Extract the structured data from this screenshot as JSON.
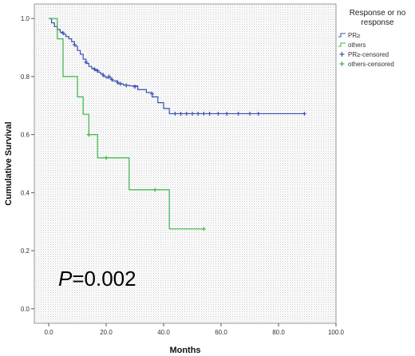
{
  "chart_data": {
    "type": "line",
    "title": "",
    "xlabel": "Months",
    "ylabel": "Cumulative Survival",
    "xlim": [
      -5,
      100
    ],
    "ylim": [
      -0.05,
      1.05
    ],
    "x_ticks": [
      "0.0",
      "20.0",
      "40.0",
      "60.0",
      "80.0",
      "100.0"
    ],
    "y_ticks": [
      "0.0",
      "0.2",
      "0.4",
      "0.6",
      "0.8",
      "1.0"
    ],
    "grid": false,
    "background": "dotted-gray",
    "legend": {
      "title": "Response or no response",
      "title_lines": [
        "Response or no",
        "response"
      ],
      "placement": "right",
      "entries": [
        "PR≥",
        "others",
        "PR≥-censored",
        "others-censored"
      ]
    },
    "annotation": {
      "p_symbol": "P",
      "p_value": "=0.002"
    },
    "series": [
      {
        "name": "PR≥",
        "color": "#3b53b0",
        "step": [
          [
            0,
            1.0
          ],
          [
            1,
            0.985
          ],
          [
            2,
            0.972
          ],
          [
            3,
            0.962
          ],
          [
            4,
            0.953
          ],
          [
            5,
            0.945
          ],
          [
            6,
            0.938
          ],
          [
            7,
            0.93
          ],
          [
            8,
            0.92
          ],
          [
            9,
            0.905
          ],
          [
            10,
            0.89
          ],
          [
            11,
            0.877
          ],
          [
            12,
            0.86
          ],
          [
            13,
            0.845
          ],
          [
            14,
            0.835
          ],
          [
            15,
            0.828
          ],
          [
            16,
            0.822
          ],
          [
            17,
            0.815
          ],
          [
            18,
            0.81
          ],
          [
            19,
            0.8
          ],
          [
            20,
            0.795
          ],
          [
            22,
            0.785
          ],
          [
            24,
            0.775
          ],
          [
            26,
            0.77
          ],
          [
            28,
            0.768
          ],
          [
            31,
            0.755
          ],
          [
            34,
            0.745
          ],
          [
            36,
            0.73
          ],
          [
            38,
            0.71
          ],
          [
            40,
            0.69
          ],
          [
            42,
            0.672
          ],
          [
            89,
            0.672
          ]
        ],
        "censored": [
          [
            5,
            0.95
          ],
          [
            9,
            0.91
          ],
          [
            13,
            0.85
          ],
          [
            16,
            0.825
          ],
          [
            17,
            0.82
          ],
          [
            19,
            0.805
          ],
          [
            21,
            0.8
          ],
          [
            22,
            0.79
          ],
          [
            24,
            0.78
          ],
          [
            25,
            0.775
          ],
          [
            27,
            0.77
          ],
          [
            30,
            0.765
          ],
          [
            36,
            0.74
          ],
          [
            44,
            0.672
          ],
          [
            46,
            0.672
          ],
          [
            48,
            0.672
          ],
          [
            50,
            0.672
          ],
          [
            52,
            0.672
          ],
          [
            54,
            0.672
          ],
          [
            56,
            0.672
          ],
          [
            59,
            0.672
          ],
          [
            62,
            0.672
          ],
          [
            66,
            0.672
          ],
          [
            70,
            0.672
          ],
          [
            73,
            0.672
          ],
          [
            89,
            0.672
          ]
        ]
      },
      {
        "name": "others",
        "color": "#39b54a",
        "step": [
          [
            0,
            1.0
          ],
          [
            3,
            0.93
          ],
          [
            5,
            0.8
          ],
          [
            10,
            0.73
          ],
          [
            12,
            0.67
          ],
          [
            14,
            0.6
          ],
          [
            17,
            0.52
          ],
          [
            28,
            0.41
          ],
          [
            42,
            0.275
          ],
          [
            54,
            0.275
          ]
        ],
        "censored": [
          [
            14,
            0.6
          ],
          [
            20,
            0.52
          ],
          [
            37,
            0.41
          ],
          [
            54,
            0.275
          ]
        ]
      }
    ]
  }
}
